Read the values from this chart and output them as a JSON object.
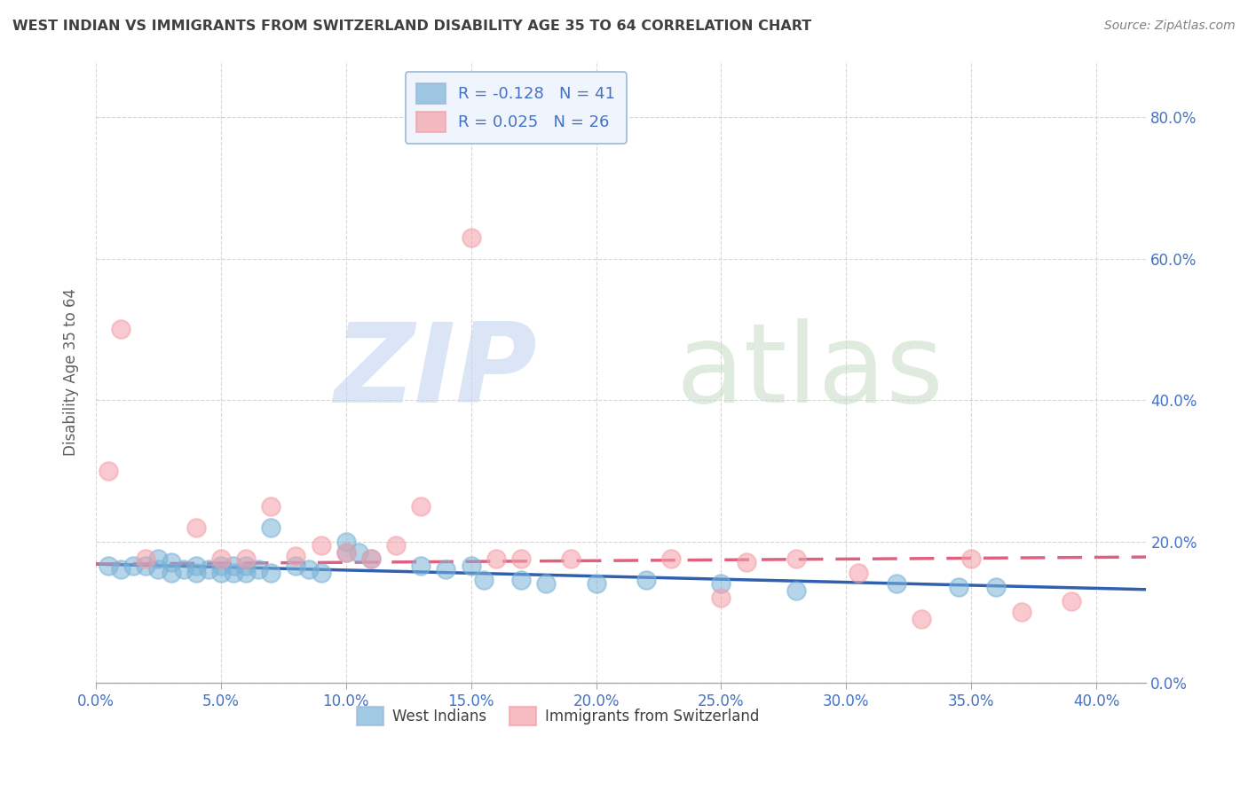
{
  "title": "WEST INDIAN VS IMMIGRANTS FROM SWITZERLAND DISABILITY AGE 35 TO 64 CORRELATION CHART",
  "source": "Source: ZipAtlas.com",
  "xlim": [
    0.0,
    0.42
  ],
  "ylim": [
    0.0,
    0.88
  ],
  "blue_label": "West Indians",
  "pink_label": "Immigrants from Switzerland",
  "blue_r": "-0.128",
  "blue_n": "41",
  "pink_r": "0.025",
  "pink_n": "26",
  "blue_color": "#7ab3d8",
  "pink_color": "#f4a0a8",
  "legend_box_color": "#f0f4fc",
  "legend_border_color": "#9ab8d8",
  "blue_scatter_x": [
    0.005,
    0.01,
    0.015,
    0.02,
    0.025,
    0.025,
    0.03,
    0.03,
    0.035,
    0.04,
    0.04,
    0.045,
    0.05,
    0.05,
    0.055,
    0.055,
    0.06,
    0.06,
    0.065,
    0.07,
    0.07,
    0.08,
    0.085,
    0.09,
    0.1,
    0.1,
    0.105,
    0.11,
    0.13,
    0.14,
    0.15,
    0.155,
    0.17,
    0.18,
    0.2,
    0.22,
    0.25,
    0.28,
    0.32,
    0.345,
    0.36
  ],
  "blue_scatter_y": [
    0.165,
    0.16,
    0.165,
    0.165,
    0.175,
    0.16,
    0.17,
    0.155,
    0.16,
    0.165,
    0.155,
    0.16,
    0.165,
    0.155,
    0.165,
    0.155,
    0.165,
    0.155,
    0.16,
    0.22,
    0.155,
    0.165,
    0.16,
    0.155,
    0.2,
    0.185,
    0.185,
    0.175,
    0.165,
    0.16,
    0.165,
    0.145,
    0.145,
    0.14,
    0.14,
    0.145,
    0.14,
    0.13,
    0.14,
    0.135,
    0.135
  ],
  "pink_scatter_x": [
    0.005,
    0.01,
    0.02,
    0.04,
    0.05,
    0.06,
    0.07,
    0.08,
    0.09,
    0.1,
    0.11,
    0.12,
    0.13,
    0.15,
    0.16,
    0.17,
    0.19,
    0.23,
    0.25,
    0.26,
    0.28,
    0.305,
    0.33,
    0.35,
    0.37,
    0.39
  ],
  "pink_scatter_y": [
    0.3,
    0.5,
    0.175,
    0.22,
    0.175,
    0.175,
    0.25,
    0.18,
    0.195,
    0.185,
    0.175,
    0.195,
    0.25,
    0.63,
    0.175,
    0.175,
    0.175,
    0.175,
    0.12,
    0.17,
    0.175,
    0.155,
    0.09,
    0.175,
    0.1,
    0.115
  ],
  "blue_trend_x": [
    0.0,
    0.42
  ],
  "blue_trend_y": [
    0.168,
    0.132
  ],
  "pink_trend_x": [
    0.0,
    0.42
  ],
  "pink_trend_y": [
    0.168,
    0.178
  ],
  "ylabel": "Disability Age 35 to 64",
  "xtick_vals": [
    0.0,
    0.05,
    0.1,
    0.15,
    0.2,
    0.25,
    0.3,
    0.35,
    0.4
  ],
  "ytick_vals": [
    0.0,
    0.2,
    0.4,
    0.6,
    0.8
  ],
  "tick_color": "#4472c4",
  "grid_color": "#cccccc",
  "title_color": "#404040",
  "source_color": "#808080",
  "ylabel_color": "#606060"
}
